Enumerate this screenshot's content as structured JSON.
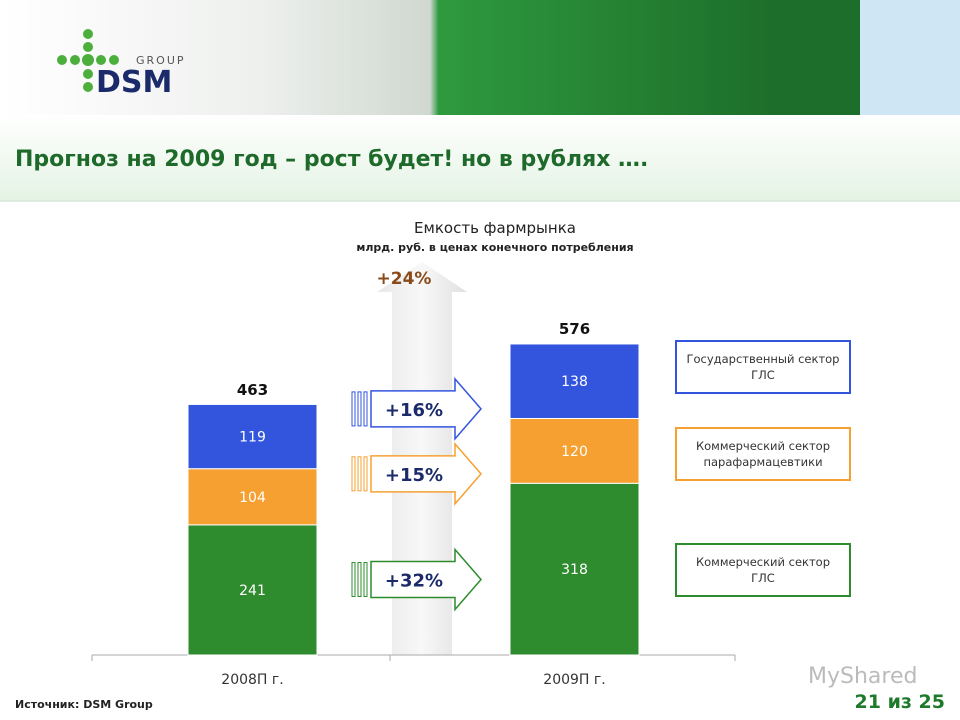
{
  "header": {
    "logo": "DSM",
    "logo_sub": "GROUP",
    "title": "Прогноз на 2009 год – рост будет! но в рублях …."
  },
  "chart_data": {
    "type": "stacked_bar",
    "title": "Емкость фармрынка",
    "subtitle": "млрд. руб. в ценах конечного потребления",
    "categories": [
      "2008П г.",
      "2009П г."
    ],
    "series": [
      {
        "name": "Коммерческий сектор ГЛС",
        "color": "#2e8b2e",
        "values": [
          241,
          318
        ],
        "growth": "+32%"
      },
      {
        "name": "Коммерческий сектор парафармацевтики",
        "color": "#f5a030",
        "values": [
          104,
          120
        ],
        "growth": "+15%"
      },
      {
        "name": "Государственный сектор ГЛС",
        "color": "#3355dd",
        "values": [
          119,
          138
        ],
        "growth": "+16%"
      }
    ],
    "totals": [
      463,
      576
    ],
    "total_growth": "+24%"
  },
  "footer": {
    "source": "Источник: DSM Group",
    "page": "21 из 25",
    "watermark": "MyShared"
  }
}
